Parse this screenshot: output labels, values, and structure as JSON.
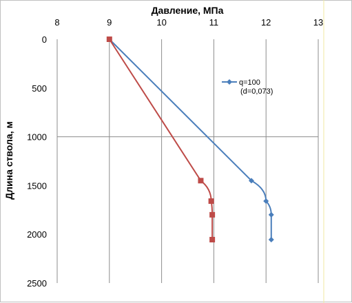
{
  "chart_data": {
    "type": "line",
    "title": "",
    "xlabel": "Давление, МПа",
    "ylabel": "Длина ствола, м",
    "xaxis_position": "top",
    "y_inverted": true,
    "xlim": [
      8,
      13
    ],
    "ylim": [
      0,
      2500
    ],
    "xticks": [
      "8",
      "9",
      "10",
      "11",
      "12",
      "13"
    ],
    "yticks": [
      "0",
      "500",
      "1000",
      "1500",
      "2000",
      "2500"
    ],
    "grid": "vertical-major",
    "legend_position": "top-right",
    "series": [
      {
        "name": "q=100",
        "name_line2": "(d=0,073)",
        "color": "#4a7ebb",
        "marker": "diamond",
        "points": [
          {
            "x": 9.0,
            "y": 0
          },
          {
            "x": 11.72,
            "y": 1450
          },
          {
            "x": 12.0,
            "y": 1660
          },
          {
            "x": 12.1,
            "y": 1800
          },
          {
            "x": 12.1,
            "y": 2055
          }
        ]
      },
      {
        "name": "",
        "color": "#be4b48",
        "marker": "square",
        "points": [
          {
            "x": 9.0,
            "y": 0
          },
          {
            "x": 10.75,
            "y": 1450
          },
          {
            "x": 10.95,
            "y": 1660
          },
          {
            "x": 10.97,
            "y": 1800
          },
          {
            "x": 10.97,
            "y": 2055
          }
        ]
      }
    ]
  }
}
